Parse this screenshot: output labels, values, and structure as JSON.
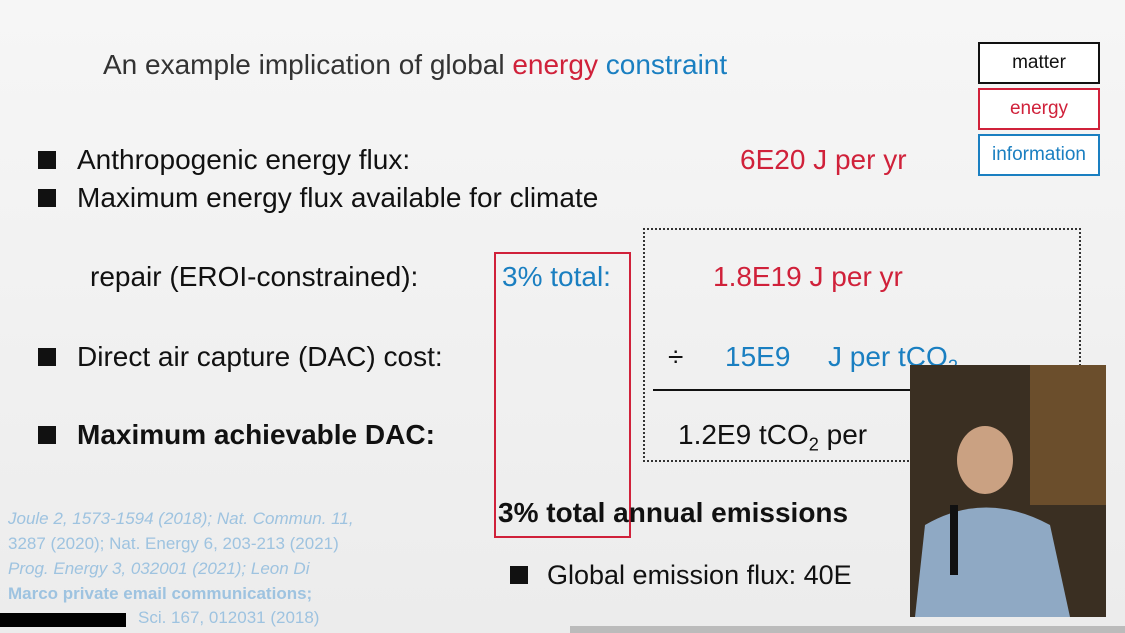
{
  "slide": {
    "title": {
      "lead": "An example implication of global",
      "energy": "energy",
      "constraint": "constraint"
    },
    "legend": [
      "matter",
      "energy",
      "information"
    ],
    "rows": {
      "anthropogenic": {
        "label": "Anthropogenic energy flux:",
        "value": "6E20 J per yr"
      },
      "maximum_flux": {
        "label_line1": "Maximum energy flux available for climate",
        "label_line2": "repair (EROI-constrained):",
        "share": "3% total:",
        "value": "1.8E19 J per yr"
      },
      "dac_cost": {
        "label": "Direct air capture (DAC) cost:",
        "operator": "÷",
        "value": "15E9",
        "unit": "J per tCO",
        "unit_sub": "2"
      },
      "max_dac": {
        "label": "Maximum achievable DAC:",
        "value": "1.2E9 tCO",
        "value_sub": "2",
        "value_tail": "per"
      }
    },
    "emissions": {
      "bold": "3% total",
      "rest": "annual emissions"
    },
    "global_flux": "Global emission flux: 40E",
    "references": [
      "Joule 2, 1573-1594 (2018); Nat. Commun. 11,",
      "3287 (2020); Nat. Energy 6, 203-213 (2021)",
      "Prog. Energy 3, 032001 (2021); Leon Di",
      "Marco private email communications;",
      "Sci. 167, 012031 (2018)"
    ]
  }
}
